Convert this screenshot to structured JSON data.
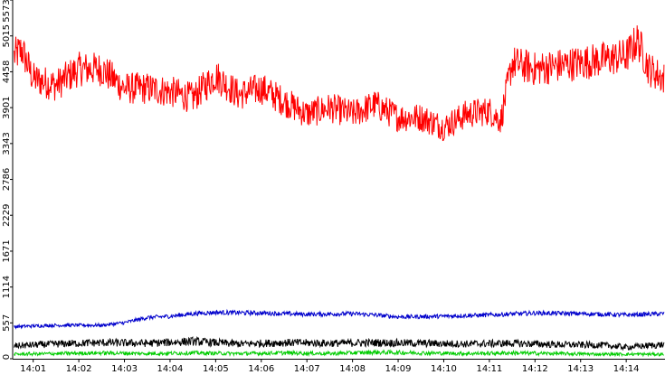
{
  "chart_data": {
    "type": "line",
    "title": "",
    "xlabel": "",
    "ylabel": "",
    "grid": false,
    "xlim_minutes": [
      0.55,
      14.85
    ],
    "ylim": [
      0,
      5573
    ],
    "x_ticks": [
      "14:01",
      "14:02",
      "14:03",
      "14:04",
      "14:05",
      "14:06",
      "14:07",
      "14:08",
      "14:09",
      "14:10",
      "14:11",
      "14:12",
      "14:13",
      "14:14"
    ],
    "y_ticks": [
      "0",
      "557",
      "1114",
      "1671",
      "2229",
      "2786",
      "3343",
      "3901",
      "4458",
      "5015",
      "5573"
    ],
    "series": [
      {
        "color": "#ff0000",
        "times": [
          "14:00:35",
          "14:00:45",
          "14:01:00",
          "14:01:30",
          "14:02:00",
          "14:02:30",
          "14:03:00",
          "14:03:30",
          "14:04:00",
          "14:04:30",
          "14:05:00",
          "14:05:30",
          "14:06:00",
          "14:06:30",
          "14:07:00",
          "14:07:30",
          "14:08:00",
          "14:08:30",
          "14:09:00",
          "14:09:30",
          "14:10:00",
          "14:10:30",
          "14:11:00",
          "14:11:15",
          "14:11:30",
          "14:12:00",
          "14:12:30",
          "14:13:00",
          "14:13:30",
          "14:14:00",
          "14:14:15",
          "14:14:30",
          "14:14:50"
        ],
        "values": [
          4700,
          4800,
          4350,
          4250,
          4500,
          4500,
          4200,
          4200,
          4150,
          4050,
          4400,
          4100,
          4200,
          4000,
          3800,
          3900,
          3800,
          3950,
          3750,
          3750,
          3600,
          3800,
          3850,
          3700,
          4600,
          4500,
          4550,
          4600,
          4650,
          4700,
          4950,
          4500,
          4350
        ]
      },
      {
        "color": "#0000cc",
        "times": [
          "14:00:35",
          "14:01:30",
          "14:02:30",
          "14:03:00",
          "14:03:30",
          "14:04:00",
          "14:04:30",
          "14:05:00",
          "14:06:00",
          "14:07:00",
          "14:08:00",
          "14:08:30",
          "14:09:00",
          "14:10:00",
          "14:11:00",
          "14:12:00",
          "14:13:00",
          "14:14:00",
          "14:14:50"
        ],
        "values": [
          500,
          520,
          520,
          560,
          640,
          660,
          700,
          720,
          710,
          690,
          700,
          680,
          650,
          660,
          680,
          710,
          700,
          680,
          700
        ]
      },
      {
        "color": "#000000",
        "times": [
          "14:00:35",
          "14:01:30",
          "14:02:30",
          "14:03:30",
          "14:04:30",
          "14:05:30",
          "14:06:30",
          "14:07:30",
          "14:08:30",
          "14:09:30",
          "14:10:30",
          "14:11:30",
          "14:12:30",
          "14:13:30",
          "14:14:00",
          "14:14:50"
        ],
        "values": [
          200,
          230,
          250,
          240,
          270,
          230,
          250,
          240,
          250,
          240,
          230,
          240,
          220,
          210,
          180,
          220
        ]
      },
      {
        "color": "#00cc00",
        "times": [
          "14:00:35",
          "14:01:30",
          "14:02:30",
          "14:03:30",
          "14:04:30",
          "14:05:30",
          "14:06:30",
          "14:07:30",
          "14:08:30",
          "14:09:30",
          "14:10:30",
          "14:11:30",
          "14:12:30",
          "14:13:30",
          "14:14:50"
        ],
        "values": [
          70,
          80,
          90,
          80,
          90,
          80,
          90,
          80,
          100,
          90,
          80,
          90,
          80,
          70,
          70
        ]
      }
    ]
  }
}
